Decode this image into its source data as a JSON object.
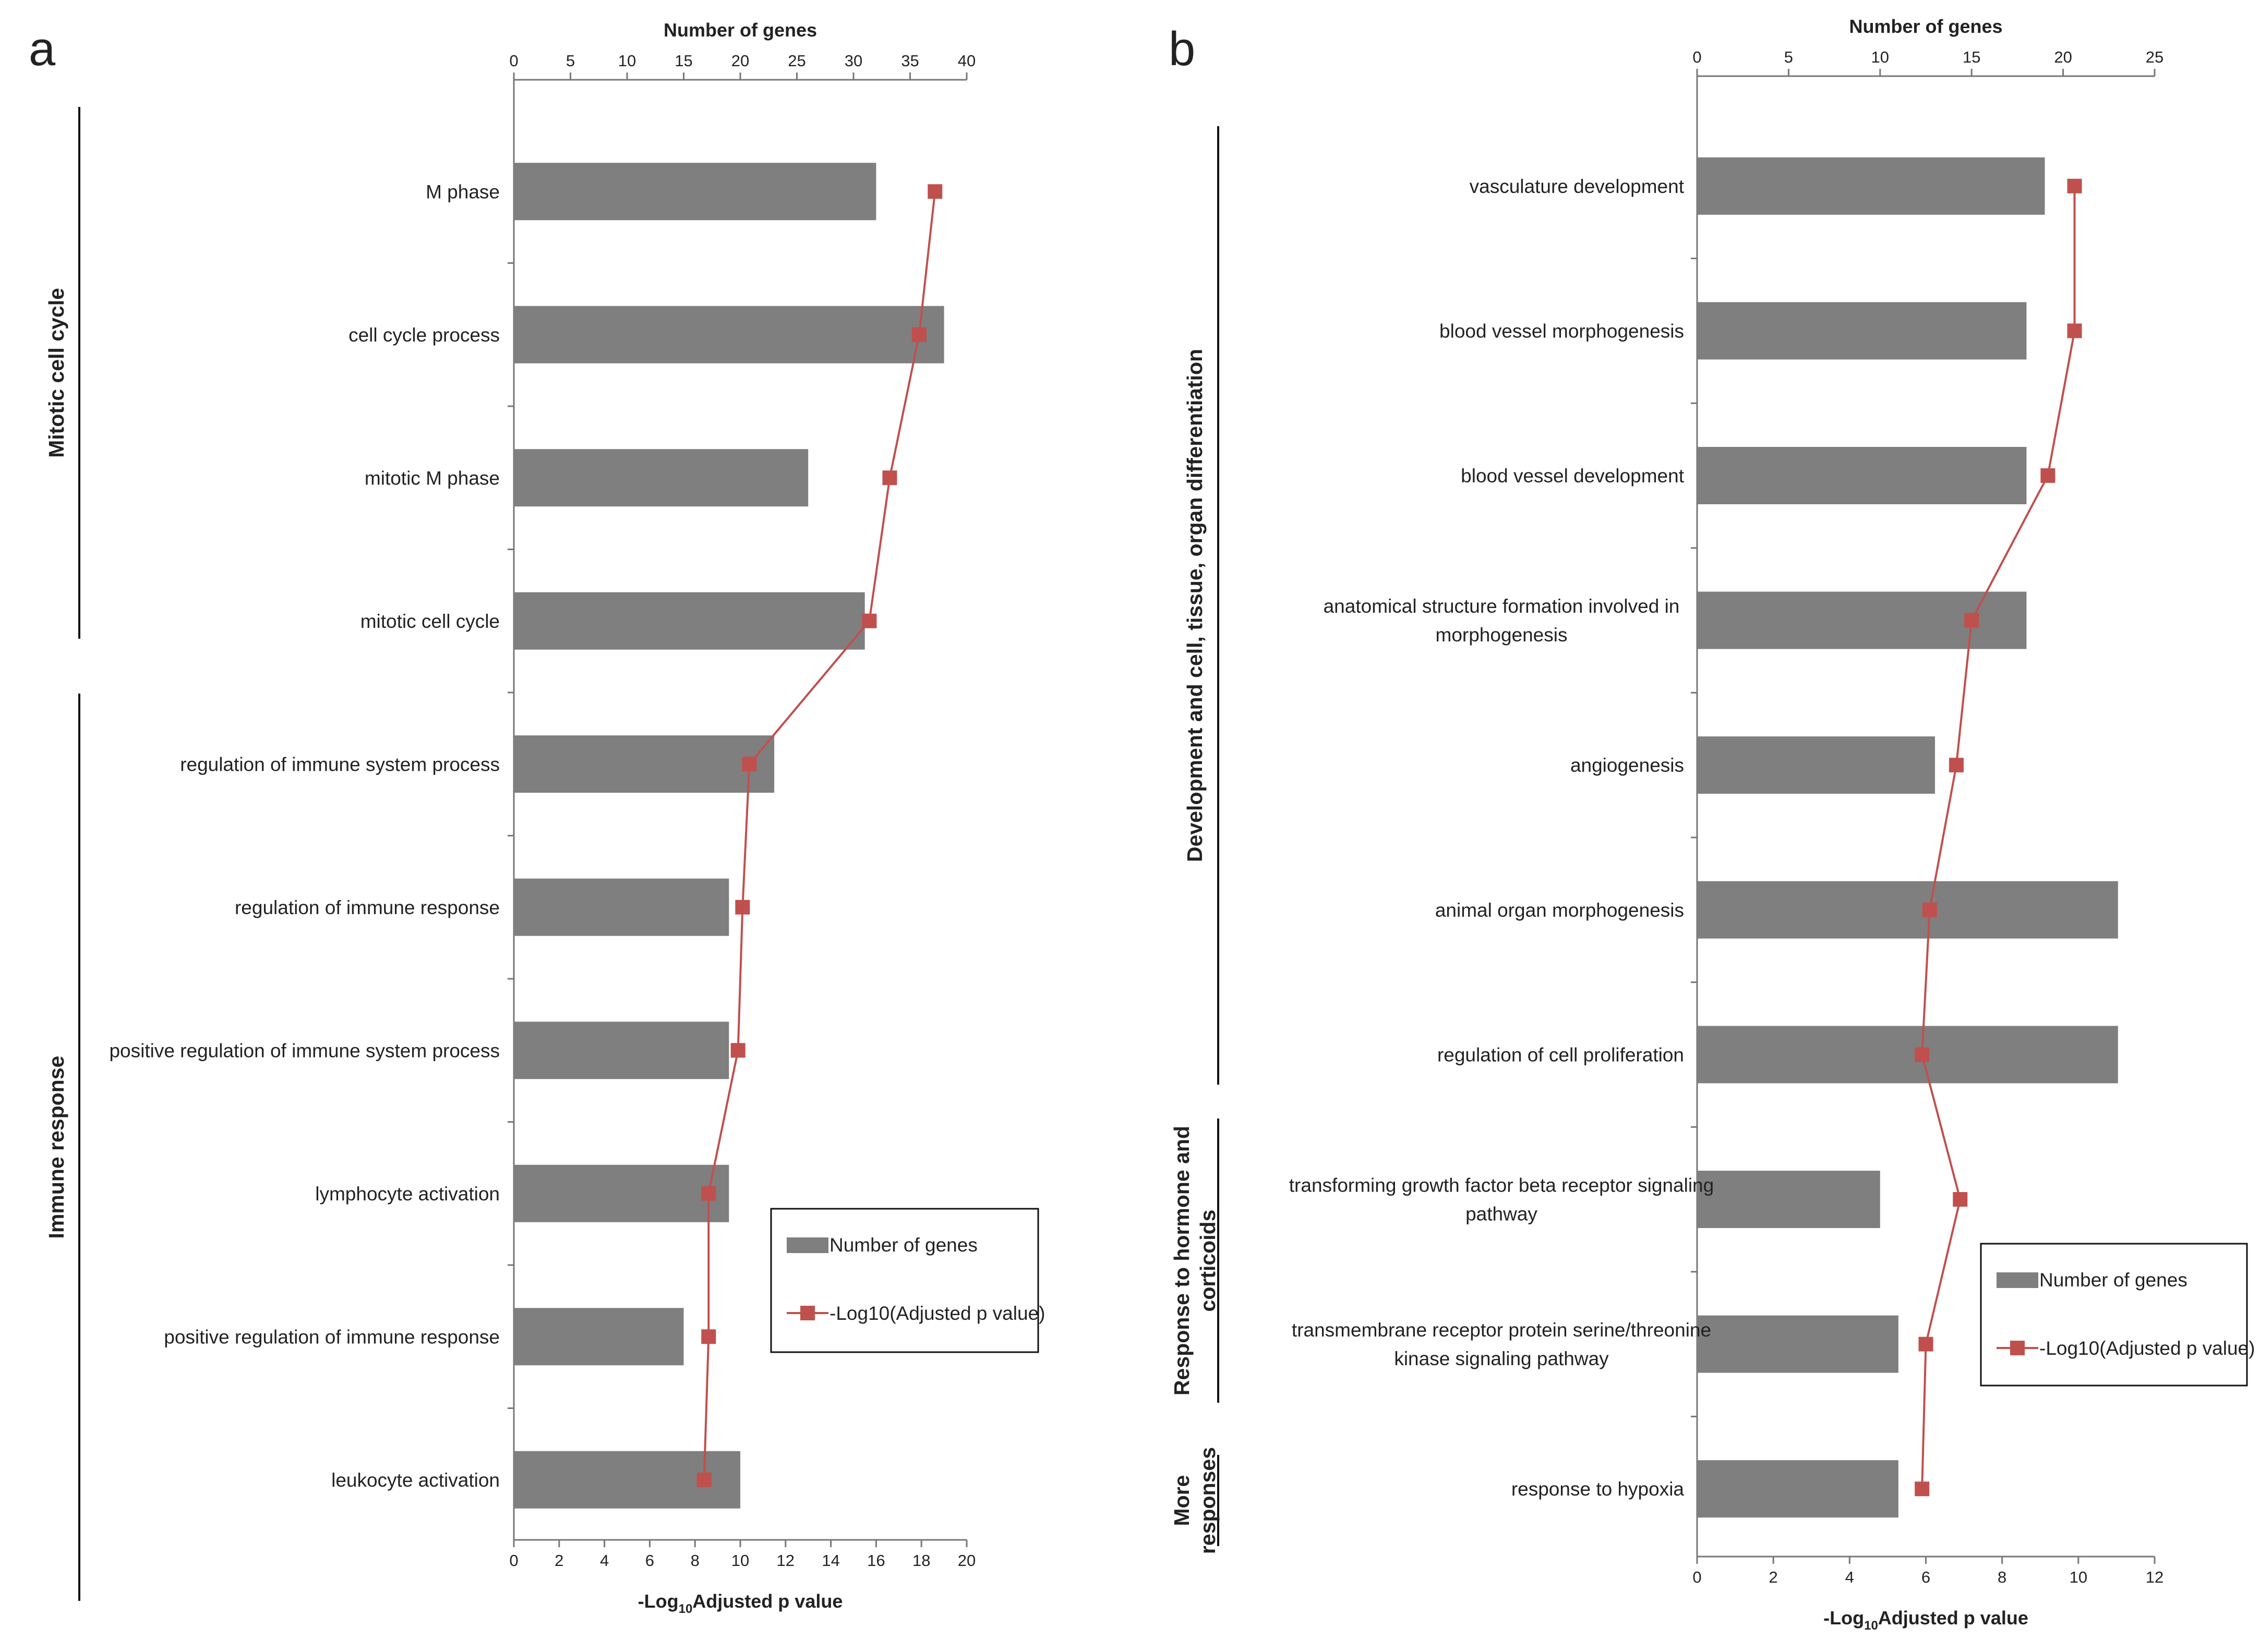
{
  "colors": {
    "bar": "#7f7f7f",
    "line": "#c0504d",
    "axis": "#777777",
    "text": "#222222"
  },
  "chart_data": [
    {
      "panel": "a",
      "type": "bar",
      "orientation": "horizontal",
      "top_axis": {
        "label": "Number of genes",
        "min": 0,
        "max": 40,
        "ticks": [
          "0",
          "5",
          "10",
          "15",
          "20",
          "25",
          "30",
          "35",
          "40"
        ]
      },
      "bottom_axis": {
        "label_prefix": "-Log",
        "label_sub": "10",
        "label_suffix": "Adjusted p value",
        "min": 0,
        "max": 20,
        "ticks": [
          "0",
          "2",
          "4",
          "6",
          "8",
          "10",
          "12",
          "14",
          "16",
          "18",
          "20"
        ]
      },
      "categories": [
        {
          "label": [
            "M phase"
          ],
          "genes": 32,
          "neglog10_adj_p": 18.6
        },
        {
          "label": [
            "cell cycle process"
          ],
          "genes": 38,
          "neglog10_adj_p": 17.9
        },
        {
          "label": [
            "mitotic M phase"
          ],
          "genes": 26,
          "neglog10_adj_p": 16.6
        },
        {
          "label": [
            "mitotic cell cycle"
          ],
          "genes": 31,
          "neglog10_adj_p": 15.7
        },
        {
          "label": [
            "regulation of immune system process"
          ],
          "genes": 23,
          "neglog10_adj_p": 10.4
        },
        {
          "label": [
            "regulation of immune response"
          ],
          "genes": 19,
          "neglog10_adj_p": 10.1
        },
        {
          "label": [
            "positive regulation of immune system process"
          ],
          "genes": 19,
          "neglog10_adj_p": 9.9
        },
        {
          "label": [
            "lymphocyte activation"
          ],
          "genes": 19,
          "neglog10_adj_p": 8.6
        },
        {
          "label": [
            "positive regulation of immune response"
          ],
          "genes": 15,
          "neglog10_adj_p": 8.6
        },
        {
          "label": [
            "leukocyte activation"
          ],
          "genes": 20,
          "neglog10_adj_p": 8.4
        }
      ],
      "series": [
        {
          "name": "Number of genes",
          "kind": "bar"
        },
        {
          "name": "-Log10(Adjusted p value)",
          "kind": "line"
        }
      ],
      "groups": [
        {
          "label": [
            "Mitotic cell cycle"
          ],
          "from": 0,
          "to": 3
        },
        {
          "label": [
            "Immune response"
          ],
          "from": 4,
          "to": 9
        }
      ],
      "legend": "bottom-right"
    },
    {
      "panel": "b",
      "type": "bar",
      "orientation": "horizontal",
      "top_axis": {
        "label": "Number of genes",
        "min": 0,
        "max": 25,
        "ticks": [
          "0",
          "5",
          "10",
          "15",
          "20",
          "25"
        ]
      },
      "bottom_axis": {
        "label_prefix": "-Log",
        "label_sub": "10",
        "label_suffix": "Adjusted p value",
        "min": 0,
        "max": 12,
        "ticks": [
          "0",
          "2",
          "4",
          "6",
          "8",
          "10",
          "12"
        ]
      },
      "categories": [
        {
          "label": [
            "vasculature development"
          ],
          "genes": 19,
          "neglog10_adj_p": 9.9
        },
        {
          "label": [
            "blood vessel morphogenesis"
          ],
          "genes": 18,
          "neglog10_adj_p": 9.9
        },
        {
          "label": [
            "blood vessel development"
          ],
          "genes": 18,
          "neglog10_adj_p": 9.2
        },
        {
          "label": [
            "anatomical structure formation involved in",
            "morphogenesis"
          ],
          "genes": 18,
          "neglog10_adj_p": 7.2
        },
        {
          "label": [
            "angiogenesis"
          ],
          "genes": 13,
          "neglog10_adj_p": 6.8
        },
        {
          "label": [
            "animal organ morphogenesis"
          ],
          "genes": 23,
          "neglog10_adj_p": 6.1
        },
        {
          "label": [
            "regulation of cell proliferation"
          ],
          "genes": 23,
          "neglog10_adj_p": 5.9
        },
        {
          "label": [
            "transforming growth factor beta receptor signaling",
            "pathway"
          ],
          "genes": 10,
          "neglog10_adj_p": 6.9
        },
        {
          "label": [
            "transmembrane receptor protein serine/threonine",
            "kinase signaling pathway"
          ],
          "genes": 11,
          "neglog10_adj_p": 6.0
        },
        {
          "label": [
            "response to hypoxia"
          ],
          "genes": 11,
          "neglog10_adj_p": 5.9
        }
      ],
      "series": [
        {
          "name": "Number of genes",
          "kind": "bar"
        },
        {
          "name": "-Log10(Adjusted p value)",
          "kind": "line"
        }
      ],
      "groups": [
        {
          "label": [
            "Development and cell, tissue, organ differentiation"
          ],
          "from": 0,
          "to": 6
        },
        {
          "label": [
            "Response to hormone and",
            "corticoids"
          ],
          "from": 7,
          "to": 8
        },
        {
          "label": [
            "More",
            "responses"
          ],
          "from": 9,
          "to": 9
        }
      ],
      "legend": "bottom-right"
    }
  ]
}
